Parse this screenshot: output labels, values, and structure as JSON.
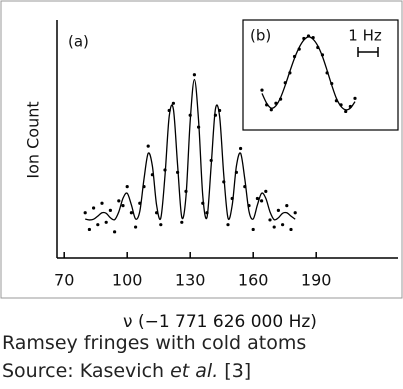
{
  "chart_data": {
    "type": "scatter",
    "panel_label": "(a)",
    "x_label": "ν (−1 771 626 000 Hz)",
    "y_label": "Ion Count",
    "xlim": [
      68,
      230
    ],
    "xticks": [
      70,
      100,
      130,
      160,
      190
    ],
    "ylim": [
      0,
      100
    ],
    "x": [
      80,
      82,
      84,
      86,
      88,
      90,
      92,
      94,
      96,
      98,
      100,
      102,
      104,
      106,
      108,
      110,
      112,
      114,
      116,
      118,
      120,
      122,
      124,
      126,
      128,
      130,
      132,
      134,
      136,
      138,
      140,
      142,
      144,
      146,
      148,
      150,
      152,
      154,
      156,
      158,
      160,
      162,
      164,
      166,
      168,
      170,
      172,
      174,
      176,
      178,
      180
    ],
    "series": [
      {
        "style": "line",
        "color": "#000000",
        "values": [
          16.4,
          16.0,
          16.3,
          17.6,
          19.0,
          18.8,
          16.9,
          16.1,
          19.4,
          25.1,
          27.2,
          22.3,
          16.4,
          19.6,
          33.2,
          44.0,
          38.6,
          22.2,
          16.8,
          34.7,
          59.5,
          62.5,
          39.0,
          17.1,
          26.0,
          57.6,
          75.0,
          57.6,
          26.0,
          17.1,
          39.0,
          62.5,
          59.5,
          34.7,
          16.8,
          22.2,
          38.6,
          44.0,
          33.2,
          19.6,
          16.4,
          22.3,
          27.2,
          25.1,
          19.4,
          16.1,
          16.9,
          18.8,
          19.0,
          17.6,
          16.3
        ]
      },
      {
        "style": "dots",
        "color": "#000000",
        "values": [
          19,
          12,
          21,
          14,
          23,
          15,
          20,
          11,
          24,
          22,
          30,
          19,
          13,
          23,
          30,
          47,
          35,
          19,
          14,
          37,
          62,
          65,
          36,
          15,
          28,
          60,
          77,
          55,
          23,
          19,
          41,
          60,
          62,
          32,
          14,
          25,
          36,
          46,
          30,
          22,
          12,
          25,
          24,
          28,
          16,
          13,
          20,
          14,
          22,
          12,
          19
        ]
      }
    ],
    "inset": {
      "panel_label": "(b)",
      "scale_label": "1 Hz",
      "ylim": [
        0,
        100
      ],
      "series": [
        {
          "style": "line",
          "color": "#000000",
          "values": [
            30,
            18,
            12,
            15,
            25,
            40,
            57,
            73,
            86,
            95,
            99,
            96,
            88,
            75,
            58,
            40,
            24,
            14,
            10,
            12,
            20
          ]
        },
        {
          "style": "dots",
          "color": "#000000",
          "values": [
            34,
            16,
            10,
            18,
            23,
            43,
            55,
            75,
            84,
            97,
            100,
            98,
            86,
            77,
            55,
            42,
            21,
            16,
            8,
            14,
            24
          ]
        }
      ]
    }
  },
  "caption": "Ramsey fringes with cold atoms",
  "source": [
    "Source: Kasevich ",
    "et al.",
    " [3]"
  ]
}
